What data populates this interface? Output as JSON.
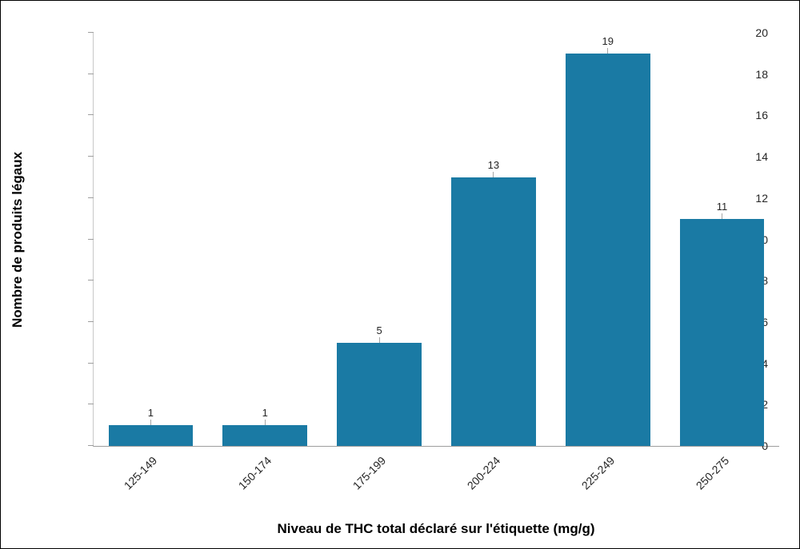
{
  "chart_data": {
    "type": "bar",
    "categories": [
      "125-149",
      "150-174",
      "175-199",
      "200-224",
      "225-249",
      "250-275"
    ],
    "values": [
      1,
      1,
      5,
      13,
      19,
      11
    ],
    "title": "",
    "xlabel": "Niveau de THC total déclaré sur l'étiquette (mg/g)",
    "ylabel": "Nombre de produits légaux",
    "ylim": [
      0,
      20
    ],
    "ytick_step": 2,
    "bar_color": "#1a7aa4",
    "grid": false,
    "legend": false,
    "value_labels_shown": true
  }
}
